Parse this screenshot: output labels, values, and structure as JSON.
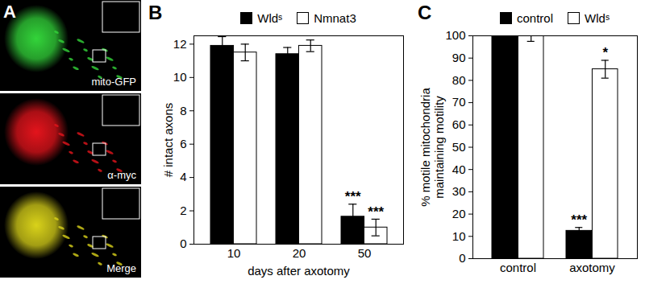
{
  "image_panel": {
    "panel": "A",
    "images": [
      {
        "label": "mito-GFP"
      },
      {
        "label": "α-myc"
      },
      {
        "label": "Merge"
      }
    ]
  },
  "chart_data": [
    {
      "panel": "B",
      "type": "bar",
      "x_label": "days after axotomy",
      "y_label": "# intact axons",
      "categories": [
        "10",
        "20",
        "50"
      ],
      "series": [
        {
          "name": "Wldˢ",
          "color": "#000000",
          "values": [
            11.9,
            11.4,
            1.65
          ],
          "errors": [
            0.55,
            0.4,
            0.75
          ],
          "annotations": [
            null,
            null,
            "***"
          ]
        },
        {
          "name": "Nmnat3",
          "color": "#ffffff",
          "values": [
            11.5,
            11.9,
            1.0
          ],
          "errors": [
            0.5,
            0.35,
            0.5
          ],
          "annotations": [
            null,
            null,
            "***"
          ]
        }
      ],
      "ylim": [
        0,
        12.5
      ],
      "yticks": [
        0,
        2,
        4,
        6,
        8,
        10,
        12
      ],
      "legend": "top"
    },
    {
      "panel": "C",
      "type": "bar",
      "y_label": "% motile mitochondria maintaining motility",
      "categories": [
        "control",
        "axotomy"
      ],
      "series": [
        {
          "name": "control",
          "color": "#000000",
          "values": [
            100,
            12.5
          ],
          "errors": [
            1.5,
            1.5
          ],
          "annotations": [
            null,
            "***"
          ]
        },
        {
          "name": "Wldˢ",
          "color": "#ffffff",
          "values": [
            100,
            85
          ],
          "errors": [
            2.5,
            4
          ],
          "annotations": [
            null,
            "*"
          ]
        }
      ],
      "ylim": [
        0,
        100
      ],
      "yticks": [
        0,
        10,
        20,
        30,
        40,
        50,
        60,
        70,
        80,
        90,
        100
      ],
      "legend": "top"
    }
  ]
}
